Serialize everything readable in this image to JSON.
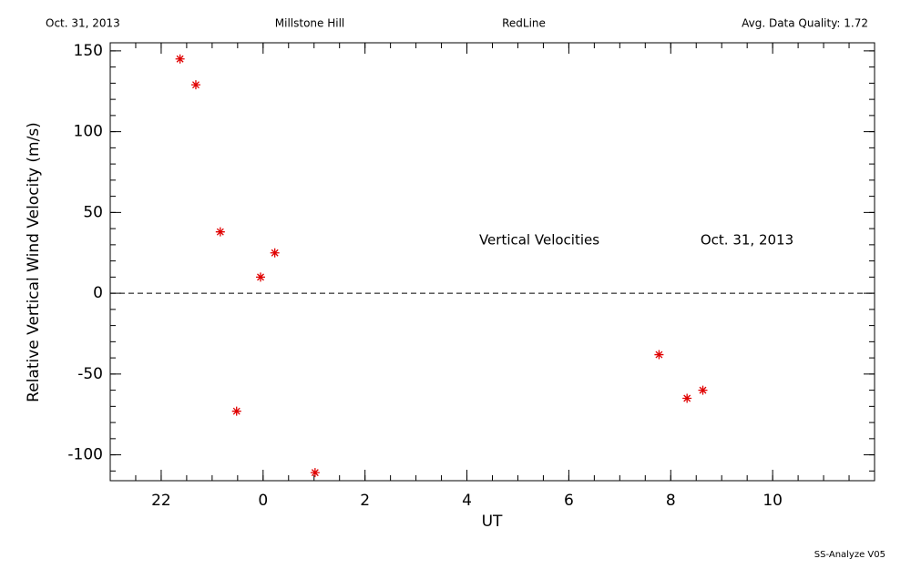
{
  "chart_data": {
    "type": "scatter",
    "header": [
      "Oct. 31, 2013",
      "Millstone Hill",
      "RedLine",
      "Avg. Data Quality: 1.72"
    ],
    "annotations": [
      "Vertical Velocities",
      "Oct. 31, 2013"
    ],
    "footer": "SS-Analyze V05",
    "xlabel": "UT",
    "ylabel": "Relative Vertical Wind Velocity (m/s)",
    "x": [
      -1.63,
      -1.32,
      -0.84,
      -0.52,
      -0.05,
      0.23,
      1.02,
      7.77,
      8.32,
      8.63
    ],
    "values": [
      145,
      129,
      38,
      -73,
      10,
      25,
      -111,
      -38,
      -65,
      -60
    ],
    "color": "#e00000",
    "marker": "asterisk",
    "xlim": [
      -3,
      12
    ],
    "ylim": [
      -116,
      155
    ],
    "xticks": [
      {
        "value": -2,
        "label": "22"
      },
      0,
      2,
      4,
      6,
      8,
      10
    ],
    "yticks": [
      -100,
      -50,
      0,
      50,
      100,
      150
    ],
    "xminor": 0.5,
    "yminor": 10,
    "reference_line": 0
  }
}
